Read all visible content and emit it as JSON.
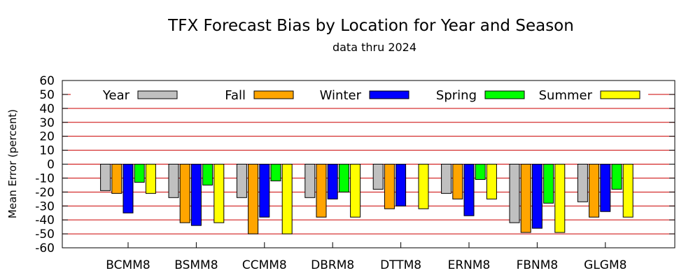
{
  "chart_data": {
    "type": "bar",
    "title": "TFX Forecast Bias by Location for Year and Season",
    "subtitle": "data thru 2024",
    "xlabel": "",
    "ylabel": "Mean Error (percent)",
    "ylim": [
      -60,
      60
    ],
    "yticks": [
      "60",
      "50",
      "40",
      "30",
      "20",
      "10",
      "0",
      "-10",
      "-20",
      "-30",
      "-40",
      "-50",
      "-60"
    ],
    "grid": "horizontal lines at 10-unit intervals",
    "legend_position": "top",
    "categories": [
      "BCMM8",
      "BSMM8",
      "CCMM8",
      "DBRM8",
      "DTTM8",
      "ERNM8",
      "FBNM8",
      "GLGM8"
    ],
    "series": [
      {
        "name": "Year",
        "color": "#c0c0c0",
        "values": [
          -19,
          -24,
          -24,
          -24,
          -18,
          -21,
          -42,
          -27
        ]
      },
      {
        "name": "Fall",
        "color": "#ffa500",
        "values": [
          -21,
          -42,
          -50,
          -38,
          -32,
          -25,
          -49,
          -38
        ]
      },
      {
        "name": "Winter",
        "color": "#0000ff",
        "values": [
          -35,
          -44,
          -38,
          -25,
          -30,
          -37,
          -46,
          -34
        ]
      },
      {
        "name": "Spring",
        "color": "#00ff00",
        "values": [
          -13,
          -15,
          -12,
          -20,
          null,
          -11,
          -28,
          -18
        ]
      },
      {
        "name": "Summer",
        "color": "#ffff00",
        "values": [
          -21,
          -42,
          -50,
          -38,
          -32,
          -25,
          -49,
          -38
        ]
      }
    ]
  }
}
